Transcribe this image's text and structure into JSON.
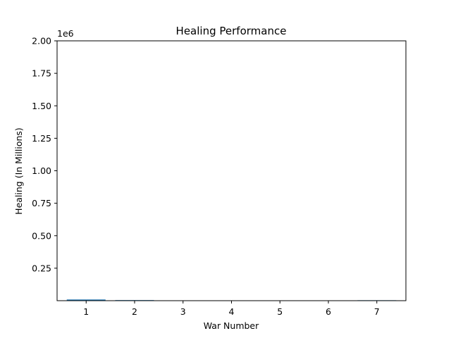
{
  "chart_data": {
    "type": "bar",
    "title": "Healing Performance",
    "xlabel": "War Number",
    "ylabel": "Healing (In Millions)",
    "y_offset_label": "1e6",
    "categories": [
      "1",
      "2",
      "3",
      "4",
      "5",
      "6",
      "7"
    ],
    "values": [
      9000,
      4500,
      0,
      0,
      0,
      0,
      3500
    ],
    "ylim": [
      0,
      2000000
    ],
    "yticks": [
      250000,
      500000,
      750000,
      1000000,
      1250000,
      1500000,
      1750000,
      2000000
    ],
    "ytick_labels": [
      "0.25",
      "0.50",
      "0.75",
      "1.00",
      "1.25",
      "1.50",
      "1.75",
      "2.00"
    ],
    "bar_color": "#1f77b4",
    "grid": false,
    "legend": "none"
  }
}
